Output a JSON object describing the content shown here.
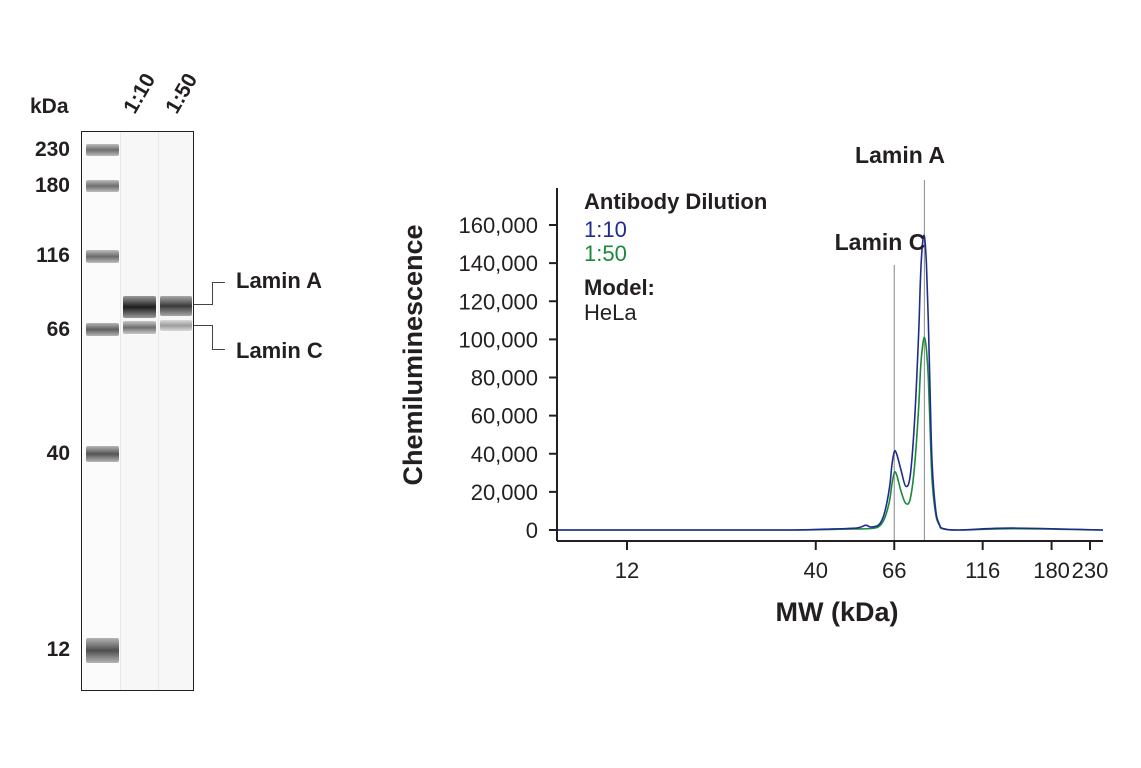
{
  "blot": {
    "unit_label": "kDa",
    "lanes": [
      "1:10",
      "1:50"
    ],
    "marker_labels": [
      "230",
      "180",
      "116",
      "66",
      "40",
      "12"
    ],
    "band_labels": [
      "Lamin A",
      "Lamin C"
    ]
  },
  "chart_data": {
    "type": "line",
    "xlabel": "MW (kDa)",
    "ylabel": "Chemiluminescence",
    "x_scale": "log",
    "x_ticks": [
      "12",
      "40",
      "66",
      "116",
      "180",
      "230"
    ],
    "y_ticks": [
      "0",
      "20,000",
      "40,000",
      "60,000",
      "80,000",
      "100,000",
      "120,000",
      "140,000",
      "160,000"
    ],
    "ylim": [
      0,
      160000
    ],
    "legend": {
      "title": "Antibody Dilution",
      "model_title": "Model:",
      "model_value": "HeLa"
    },
    "annotations": [
      {
        "label": "Lamin A",
        "x": 80
      },
      {
        "label": "Lamin C",
        "x": 66
      }
    ],
    "series": [
      {
        "name": "1:10",
        "color": "#1f2c8f",
        "x": [
          7,
          20,
          35,
          45,
          52,
          55,
          57,
          60,
          62,
          64,
          65,
          66,
          67,
          69,
          71,
          73,
          75,
          77,
          78,
          79,
          80,
          81,
          82,
          83,
          84,
          86,
          88,
          90,
          100,
          140,
          300
        ],
        "y": [
          0,
          0,
          0,
          600,
          1000,
          2500,
          1500,
          3000,
          9000,
          22000,
          34000,
          41000,
          40000,
          31000,
          23000,
          28000,
          55000,
          100000,
          132000,
          150000,
          154000,
          140000,
          110000,
          70000,
          35000,
          10000,
          3000,
          800,
          0,
          1000,
          0
        ]
      },
      {
        "name": "1:50",
        "color": "#1a8a3a",
        "x": [
          7,
          20,
          35,
          50,
          57,
          60,
          62,
          64,
          65,
          66,
          67,
          69,
          71,
          73,
          75,
          77,
          78,
          79,
          80,
          81,
          82,
          83,
          84,
          86,
          88,
          90,
          100,
          140,
          300
        ],
        "y": [
          0,
          0,
          0,
          500,
          800,
          2000,
          6000,
          15000,
          24000,
          30000,
          29000,
          20000,
          14000,
          16000,
          32000,
          62000,
          84000,
          96000,
          101000,
          95000,
          80000,
          52000,
          26000,
          8000,
          2500,
          600,
          0,
          700,
          0
        ]
      }
    ]
  }
}
